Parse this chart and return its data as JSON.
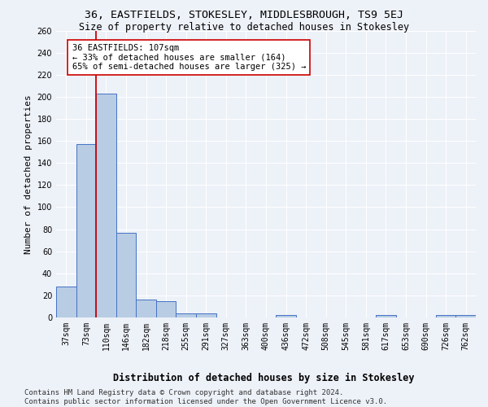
{
  "title": "36, EASTFIELDS, STOKESLEY, MIDDLESBROUGH, TS9 5EJ",
  "subtitle": "Size of property relative to detached houses in Stokesley",
  "xlabel": "Distribution of detached houses by size in Stokesley",
  "ylabel": "Number of detached properties",
  "categories": [
    "37sqm",
    "73sqm",
    "110sqm",
    "146sqm",
    "182sqm",
    "218sqm",
    "255sqm",
    "291sqm",
    "327sqm",
    "363sqm",
    "400sqm",
    "436sqm",
    "472sqm",
    "508sqm",
    "545sqm",
    "581sqm",
    "617sqm",
    "653sqm",
    "690sqm",
    "726sqm",
    "762sqm"
  ],
  "values": [
    28,
    157,
    203,
    77,
    16,
    15,
    4,
    4,
    0,
    0,
    0,
    2,
    0,
    0,
    0,
    0,
    2,
    0,
    0,
    2,
    2
  ],
  "bar_color": "#b8cce4",
  "bar_edge_color": "#4472c4",
  "vline_x": 1.5,
  "vline_color": "#cc0000",
  "annotation_text": "36 EASTFIELDS: 107sqm\n← 33% of detached houses are smaller (164)\n65% of semi-detached houses are larger (325) →",
  "annotation_box_color": "#ffffff",
  "annotation_box_edge": "#cc0000",
  "ylim": [
    0,
    260
  ],
  "yticks": [
    0,
    20,
    40,
    60,
    80,
    100,
    120,
    140,
    160,
    180,
    200,
    220,
    240,
    260
  ],
  "footer_line1": "Contains HM Land Registry data © Crown copyright and database right 2024.",
  "footer_line2": "Contains public sector information licensed under the Open Government Licence v3.0.",
  "bg_color": "#edf1f8",
  "grid_color": "#ffffff",
  "title_fontsize": 9.5,
  "subtitle_fontsize": 8.5,
  "ylabel_fontsize": 8,
  "xlabel_fontsize": 8.5,
  "tick_fontsize": 7,
  "annotation_fontsize": 7.5,
  "footer_fontsize": 6.5
}
